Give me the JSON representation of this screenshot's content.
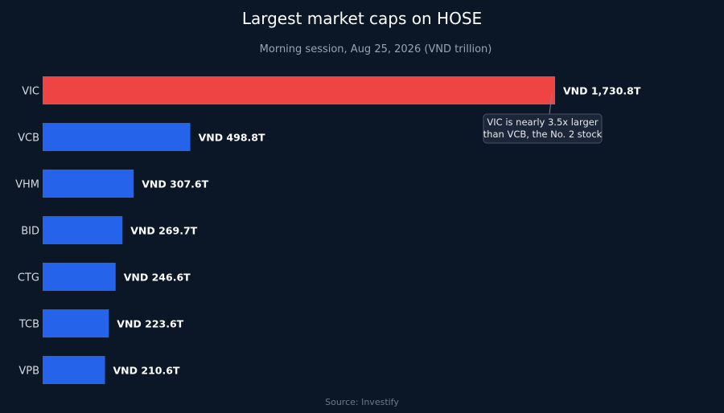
{
  "chart_data": {
    "type": "bar",
    "orientation": "horizontal",
    "title": "Largest market caps on HOSE",
    "subtitle": "Morning session, Aug 25, 2026 (VND trillion)",
    "categories": [
      "VIC",
      "VCB",
      "VHM",
      "BID",
      "CTG",
      "TCB",
      "VPB"
    ],
    "values": [
      1730.8,
      498.8,
      307.6,
      269.7,
      246.6,
      223.6,
      210.6
    ],
    "value_labels": [
      "VND 1,730.8T",
      "VND 498.8T",
      "VND 307.6T",
      "VND 269.7T",
      "VND 246.6T",
      "VND 223.6T",
      "VND 210.6T"
    ],
    "xlim": [
      0,
      1730.8
    ],
    "grid": false,
    "colors": {
      "background": "#0b1627",
      "highlight": "#ef4444",
      "default": "#2563eb"
    },
    "highlight_category": "VIC",
    "annotation": {
      "target": "VIC",
      "lines": [
        "VIC is nearly 3.5x larger",
        "than VCB, the No. 2 stock"
      ]
    },
    "source": "Source: Investify"
  }
}
